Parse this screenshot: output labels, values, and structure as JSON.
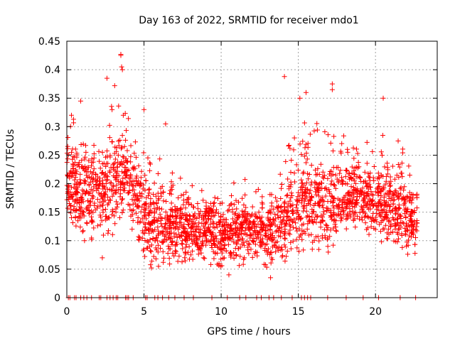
{
  "chart_data": {
    "type": "scatter",
    "title": "Day 163 of 2022, SRMTID for receiver mdo1",
    "xlabel": "GPS time / hours",
    "ylabel": "SRMTID / TECUs",
    "xlim": [
      0,
      24
    ],
    "ylim": [
      0,
      0.45
    ],
    "x_ticks": [
      0,
      5,
      10,
      15,
      20
    ],
    "x_tick_labels": [
      "0",
      "5",
      "10",
      "15",
      "20"
    ],
    "y_ticks": [
      0,
      0.05,
      0.1,
      0.15,
      0.2,
      0.25,
      0.3,
      0.35,
      0.4,
      0.45
    ],
    "y_tick_labels": [
      "0",
      "0.05",
      "0.1",
      "0.15",
      "0.2",
      "0.25",
      "0.3",
      "0.35",
      "0.4",
      "0.45"
    ],
    "grid": true,
    "marker": "+",
    "series": [
      {
        "name": "SRMTID",
        "color": "#ff0000",
        "envelope": {
          "description": "approximate per-hour spread of the dense point cloud",
          "hours": [
            0,
            1,
            2,
            3,
            4,
            5,
            6,
            7,
            8,
            9,
            10,
            11,
            12,
            13,
            14,
            15,
            16,
            17,
            18,
            19,
            20,
            21,
            22,
            22.7
          ],
          "typical": [
            0.21,
            0.19,
            0.18,
            0.2,
            0.22,
            0.14,
            0.13,
            0.12,
            0.12,
            0.12,
            0.11,
            0.12,
            0.12,
            0.11,
            0.13,
            0.17,
            0.17,
            0.16,
            0.18,
            0.18,
            0.17,
            0.16,
            0.15,
            0.13
          ],
          "low": [
            0.14,
            0.1,
            0.1,
            0.12,
            0.14,
            0.07,
            0.06,
            0.06,
            0.06,
            0.06,
            0.05,
            0.07,
            0.07,
            0.05,
            0.06,
            0.09,
            0.1,
            0.1,
            0.11,
            0.11,
            0.1,
            0.09,
            0.08,
            0.07
          ],
          "high": [
            0.31,
            0.32,
            0.27,
            0.35,
            0.33,
            0.3,
            0.25,
            0.22,
            0.2,
            0.19,
            0.18,
            0.22,
            0.2,
            0.18,
            0.24,
            0.33,
            0.3,
            0.33,
            0.3,
            0.27,
            0.28,
            0.3,
            0.25,
            0.2
          ]
        },
        "outliers": [
          {
            "x": 3.5,
            "y": 0.427
          },
          {
            "x": 3.5,
            "y": 0.425
          },
          {
            "x": 3.55,
            "y": 0.405
          },
          {
            "x": 3.6,
            "y": 0.4
          },
          {
            "x": 14.1,
            "y": 0.388
          },
          {
            "x": 3.1,
            "y": 0.372
          },
          {
            "x": 2.6,
            "y": 0.385
          },
          {
            "x": 17.2,
            "y": 0.375
          },
          {
            "x": 17.2,
            "y": 0.365
          },
          {
            "x": 20.5,
            "y": 0.35
          },
          {
            "x": 15.1,
            "y": 0.35
          },
          {
            "x": 15.5,
            "y": 0.36
          },
          {
            "x": 0.9,
            "y": 0.345
          },
          {
            "x": 0.3,
            "y": 0.32
          },
          {
            "x": 5.0,
            "y": 0.33
          },
          {
            "x": 6.4,
            "y": 0.305
          },
          {
            "x": 2.3,
            "y": 0.07
          },
          {
            "x": 13.2,
            "y": 0.035
          },
          {
            "x": 10.5,
            "y": 0.04
          }
        ],
        "zero_points_hours": [
          0.1,
          0.2,
          0.5,
          0.6,
          0.9,
          1.1,
          1.3,
          1.6,
          2.1,
          2.2,
          2.6,
          2.8,
          3.0,
          3.2,
          3.3,
          3.8,
          3.9,
          4.0,
          4.3,
          5.1,
          5.2,
          5.7,
          5.9,
          6.2,
          6.6,
          7.0,
          7.6,
          8.2,
          9.4,
          10.4,
          11.2,
          11.6,
          12.3,
          12.6,
          13.1,
          13.4,
          13.9,
          14.6,
          15.2,
          15.4,
          15.6,
          15.8,
          16.9,
          18.1,
          19.2,
          20.2,
          21.6,
          22.6
        ]
      }
    ]
  }
}
